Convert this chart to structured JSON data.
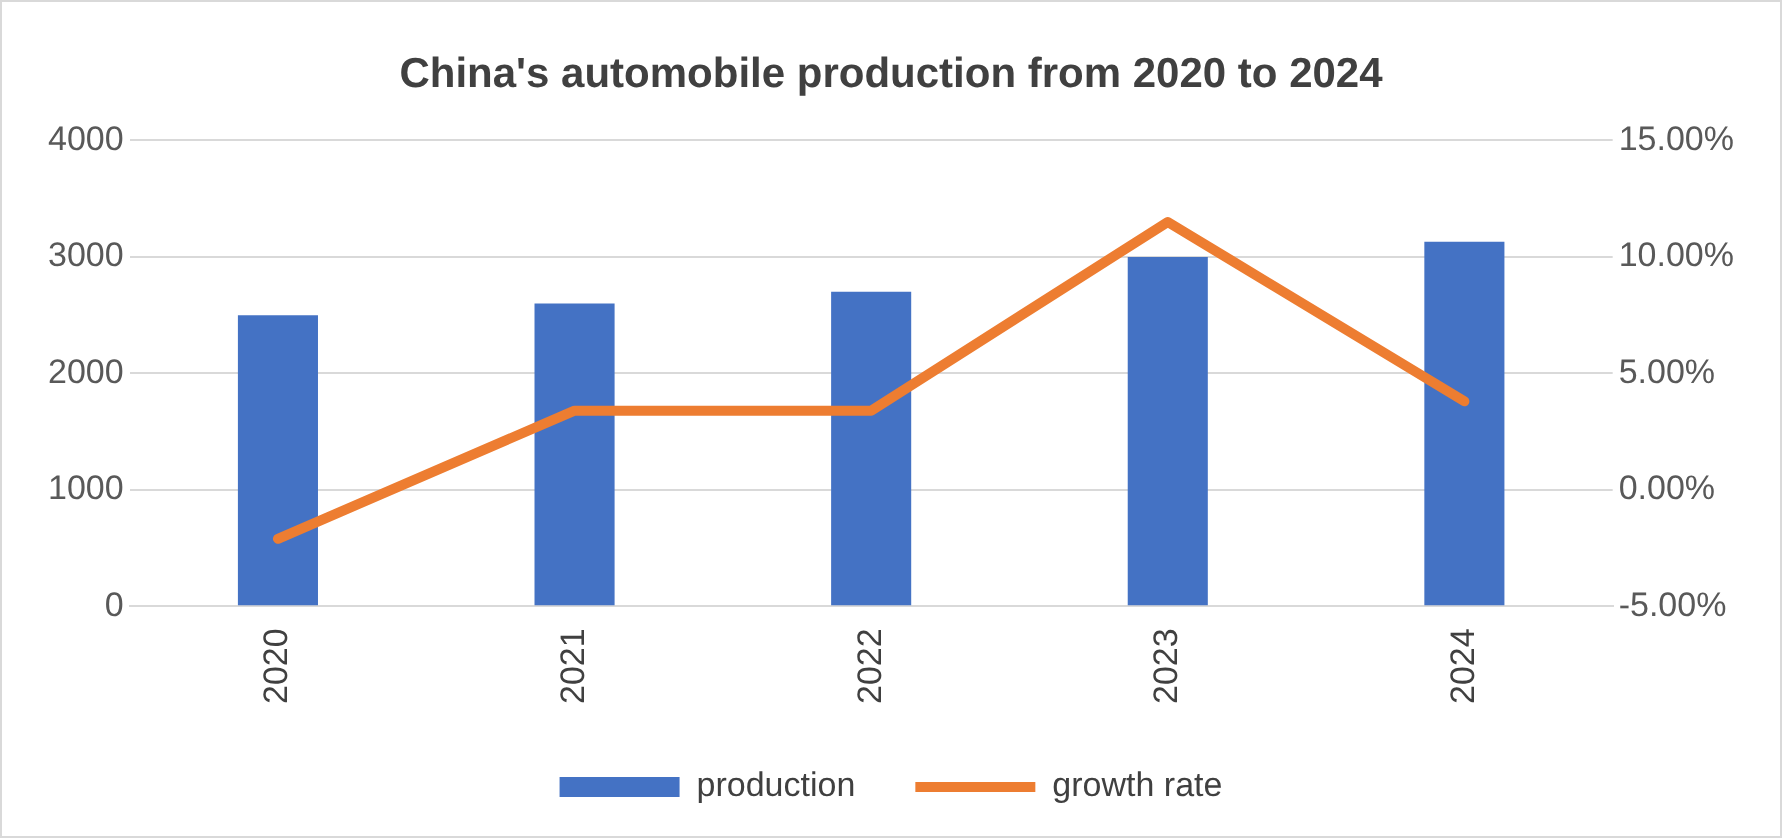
{
  "chart_data": {
    "type": "bar",
    "title": "China's automobile production from 2020 to 2024",
    "categories": [
      "2020",
      "2021",
      "2022",
      "2023",
      "2024"
    ],
    "series": [
      {
        "name": "production",
        "color": "#4472c4",
        "values": [
          2500,
          2600,
          2700,
          3000,
          3130
        ]
      },
      {
        "name": "growth rate",
        "type": "line",
        "axis": "y2",
        "color": "#ed7d31",
        "values": [
          -2.1,
          3.4,
          3.4,
          11.5,
          3.8
        ]
      }
    ],
    "ylim": [
      0,
      4000
    ],
    "yticks": [
      0,
      1000,
      2000,
      3000,
      4000
    ],
    "y2lim": [
      -5,
      15
    ],
    "y2ticks": [
      {
        "value": -5,
        "label": "-5.00%"
      },
      {
        "value": 0,
        "label": "0.00%"
      },
      {
        "value": 5,
        "label": "5.00%"
      },
      {
        "value": 10,
        "label": "10.00%"
      },
      {
        "value": 15,
        "label": "15.00%"
      }
    ],
    "grid": "y",
    "legend": "bottom",
    "marker": "none"
  }
}
